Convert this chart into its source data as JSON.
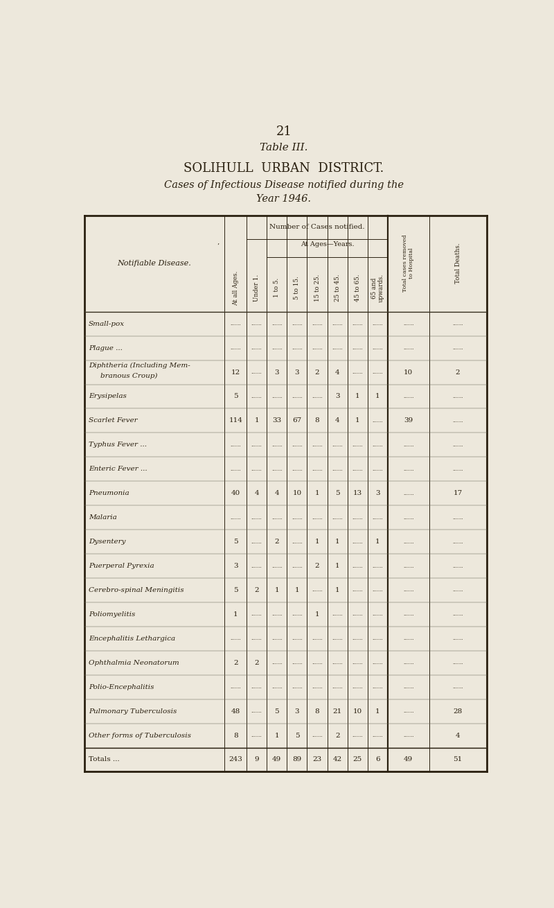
{
  "page_number": "21",
  "table_title": "Table III.",
  "subtitle1": "SOLIHULL  URBAN  DISTRICT.",
  "subtitle2": "Cases of Infectious Disease notified during the",
  "subtitle3": "Year 1946.",
  "bg_color": "#EDE8DC",
  "col_header_left": "Notifiable Disease.",
  "rows": [
    {
      "disease": "Small-pox",
      "dots": true
    },
    {
      "disease": "Plague ...",
      "dots": true
    },
    {
      "disease": "Diphtheria (Including Mem-\nbranous Croup)",
      "all_ages": "12",
      "under1": "",
      "age1to5": "3",
      "age5to15": "3",
      "age15to25": "2",
      "age25to45": "4",
      "age45to65": "",
      "age65up": "",
      "hosp": "10",
      "deaths": "2"
    },
    {
      "disease": "Erysipelas",
      "all_ages": "5",
      "under1": "",
      "age1to5": "",
      "age5to15": "",
      "age15to25": "",
      "age25to45": "3",
      "age45to65": "1",
      "age65up": "1",
      "hosp": "",
      "deaths": ""
    },
    {
      "disease": "Scarlet Fever",
      "all_ages": "114",
      "under1": "1",
      "age1to5": "33",
      "age5to15": "67",
      "age15to25": "8",
      "age25to45": "4",
      "age45to65": "1",
      "age65up": "",
      "hosp": "39",
      "deaths": ""
    },
    {
      "disease": "Typhus Fever ...",
      "dots": true
    },
    {
      "disease": "Enteric Fever ...",
      "dots": true
    },
    {
      "disease": "Pneumonia",
      "all_ages": "40",
      "under1": "4",
      "age1to5": "4",
      "age5to15": "10",
      "age15to25": "1",
      "age25to45": "5",
      "age45to65": "13",
      "age65up": "3",
      "hosp": "",
      "deaths": "17"
    },
    {
      "disease": "Malaria",
      "dots": true
    },
    {
      "disease": "Dysentery",
      "all_ages": "5",
      "under1": "",
      "age1to5": "2",
      "age5to15": "",
      "age15to25": "1",
      "age25to45": "1",
      "age45to65": "",
      "age65up": "1",
      "hosp": "",
      "deaths": ""
    },
    {
      "disease": "Puerperal Pyrexia",
      "all_ages": "3",
      "under1": "",
      "age1to5": "",
      "age5to15": "",
      "age15to25": "2",
      "age25to45": "1",
      "age45to65": "",
      "age65up": "",
      "hosp": "",
      "deaths": ""
    },
    {
      "disease": "Cerebro-spinal Meningitis",
      "all_ages": "5",
      "under1": "2",
      "age1to5": "1",
      "age5to15": "1",
      "age15to25": "",
      "age25to45": "1",
      "age45to65": "",
      "age65up": "",
      "hosp": "",
      "deaths": ""
    },
    {
      "disease": "Poliomyelitis",
      "all_ages": "1",
      "under1": "",
      "age1to5": "",
      "age5to15": "",
      "age15to25": "1",
      "age25to45": "",
      "age45to65": "",
      "age65up": "",
      "hosp": "",
      "deaths": ""
    },
    {
      "disease": "Encephalitis Lethargica",
      "dots": true
    },
    {
      "disease": "Ophthalmia Neonatorum",
      "all_ages": "2",
      "under1": "2",
      "age1to5": "",
      "age5to15": "",
      "age15to25": "",
      "age25to45": "",
      "age45to65": "",
      "age65up": "",
      "hosp": "",
      "deaths": ""
    },
    {
      "disease": "Polio-Encephalitis",
      "dots": true
    },
    {
      "disease": "Pulmonary Tuberculosis",
      "all_ages": "48",
      "under1": "",
      "age1to5": "5",
      "age5to15": "3",
      "age15to25": "8",
      "age25to45": "21",
      "age45to65": "10",
      "age65up": "1",
      "hosp": "",
      "deaths": "28"
    },
    {
      "disease": "Other forms of Tuberculosis",
      "all_ages": "8",
      "under1": "",
      "age1to5": "1",
      "age5to15": "5",
      "age15to25": "",
      "age25to45": "2",
      "age45to65": "",
      "age65up": "",
      "hosp": "",
      "deaths": "4"
    },
    {
      "disease": "Totals ...",
      "all_ages": "243",
      "under1": "9",
      "age1to5": "49",
      "age5to15": "89",
      "age15to25": "23",
      "age25to45": "42",
      "age45to65": "25",
      "age65up": "6",
      "hosp": "49",
      "deaths": "51",
      "is_total": true
    }
  ]
}
